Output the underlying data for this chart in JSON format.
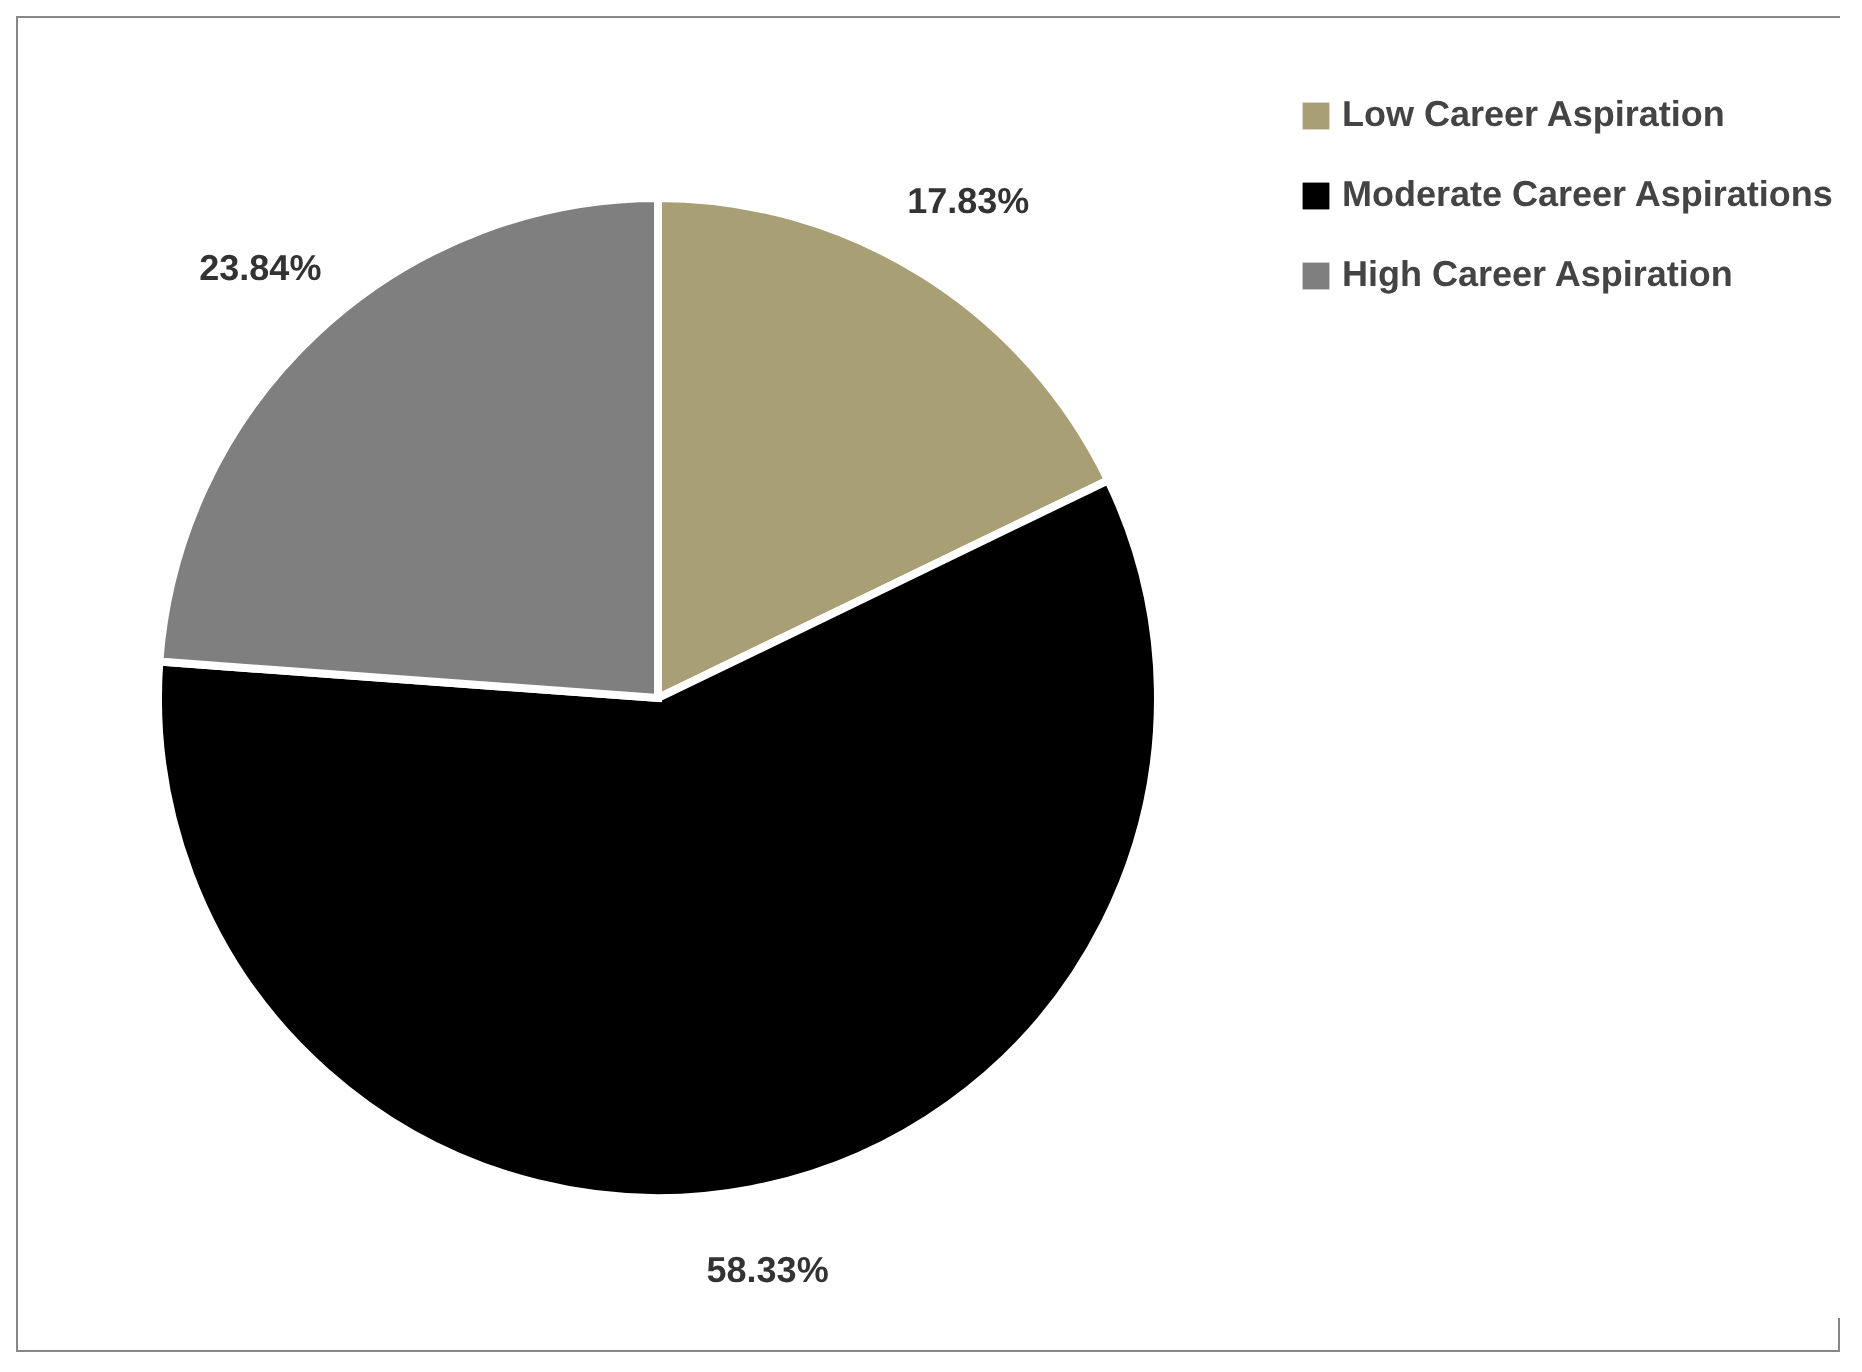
{
  "chart_data": {
    "type": "pie",
    "categories": [
      "Low Career Aspiration",
      "Moderate Career Aspirations",
      "High Career Aspiration"
    ],
    "values": [
      17.83,
      58.33,
      23.84
    ],
    "colors": [
      "#a89f74",
      "#000000",
      "#7f7f7f"
    ],
    "value_labels": [
      "17.83%",
      "58.33%",
      "23.84%"
    ],
    "legend": "right"
  }
}
